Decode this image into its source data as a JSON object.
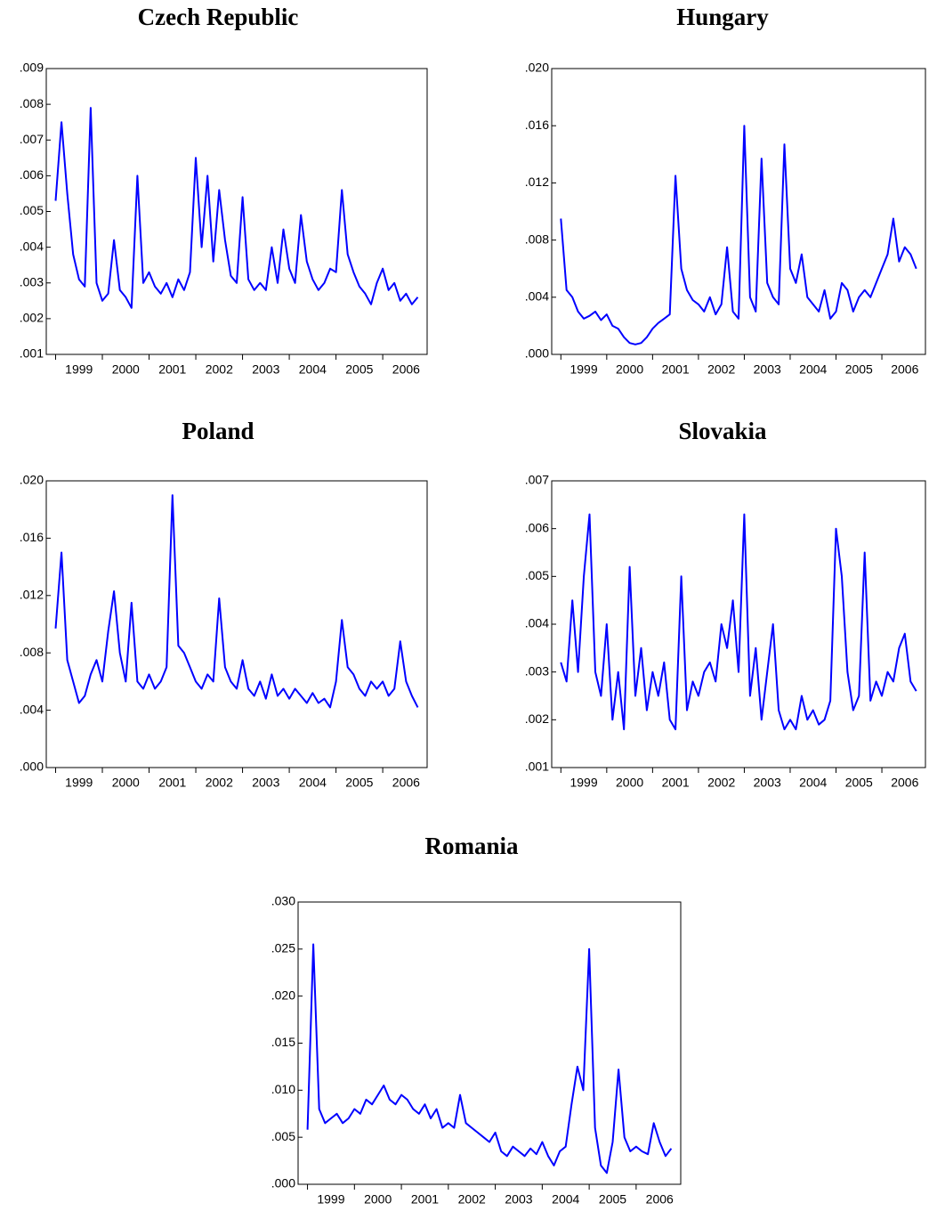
{
  "chart_data": [
    {
      "type": "line",
      "title": "Czech Republic",
      "color": "#0000ff",
      "x": [
        1999,
        1999.125,
        1999.25,
        1999.375,
        1999.5,
        1999.625,
        1999.75,
        1999.875,
        2000,
        2000.125,
        2000.25,
        2000.375,
        2000.5,
        2000.625,
        2000.75,
        2000.875,
        2001,
        2001.125,
        2001.25,
        2001.375,
        2001.5,
        2001.625,
        2001.75,
        2001.875,
        2002,
        2002.125,
        2002.25,
        2002.375,
        2002.5,
        2002.625,
        2002.75,
        2002.875,
        2003,
        2003.125,
        2003.25,
        2003.375,
        2003.5,
        2003.625,
        2003.75,
        2003.875,
        2004,
        2004.125,
        2004.25,
        2004.375,
        2004.5,
        2004.625,
        2004.75,
        2004.875,
        2005,
        2005.125,
        2005.25,
        2005.375,
        2005.5,
        2005.625,
        2005.75,
        2005.875,
        2006,
        2006.125,
        2006.25,
        2006.375,
        2006.5,
        2006.625,
        2006.75
      ],
      "values": [
        0.0053,
        0.0075,
        0.0055,
        0.0038,
        0.0031,
        0.0029,
        0.0079,
        0.003,
        0.0025,
        0.0027,
        0.0042,
        0.0028,
        0.0026,
        0.0023,
        0.006,
        0.003,
        0.0033,
        0.0029,
        0.0027,
        0.003,
        0.0026,
        0.0031,
        0.0028,
        0.0033,
        0.0065,
        0.004,
        0.006,
        0.0036,
        0.0056,
        0.0042,
        0.0032,
        0.003,
        0.0054,
        0.0031,
        0.0028,
        0.003,
        0.0028,
        0.004,
        0.003,
        0.0045,
        0.0034,
        0.003,
        0.0049,
        0.0036,
        0.0031,
        0.0028,
        0.003,
        0.0034,
        0.0033,
        0.0056,
        0.0038,
        0.0033,
        0.0029,
        0.0027,
        0.0024,
        0.003,
        0.0034,
        0.0028,
        0.003,
        0.0025,
        0.0027,
        0.0024,
        0.0026
      ],
      "xlim": [
        1998.8,
        2006.95
      ],
      "xticks": [
        1999,
        2000,
        2001,
        2002,
        2003,
        2004,
        2005,
        2006
      ],
      "ylim": [
        0.001,
        0.009
      ],
      "yticks": [
        {
          "value": 0.001,
          "label": ".001"
        },
        {
          "value": 0.002,
          "label": ".002"
        },
        {
          "value": 0.003,
          "label": ".003"
        },
        {
          "value": 0.004,
          "label": ".004"
        },
        {
          "value": 0.005,
          "label": ".005"
        },
        {
          "value": 0.006,
          "label": ".006"
        },
        {
          "value": 0.007,
          "label": ".007"
        },
        {
          "value": 0.008,
          "label": ".008"
        },
        {
          "value": 0.009,
          "label": ".009"
        }
      ]
    },
    {
      "type": "line",
      "title": "Hungary",
      "color": "#0000ff",
      "x": [
        1999,
        1999.125,
        1999.25,
        1999.375,
        1999.5,
        1999.625,
        1999.75,
        1999.875,
        2000,
        2000.125,
        2000.25,
        2000.375,
        2000.5,
        2000.625,
        2000.75,
        2000.875,
        2001,
        2001.125,
        2001.25,
        2001.375,
        2001.5,
        2001.625,
        2001.75,
        2001.875,
        2002,
        2002.125,
        2002.25,
        2002.375,
        2002.5,
        2002.625,
        2002.75,
        2002.875,
        2003,
        2003.125,
        2003.25,
        2003.375,
        2003.5,
        2003.625,
        2003.75,
        2003.875,
        2004,
        2004.125,
        2004.25,
        2004.375,
        2004.5,
        2004.625,
        2004.75,
        2004.875,
        2005,
        2005.125,
        2005.25,
        2005.375,
        2005.5,
        2005.625,
        2005.75,
        2005.875,
        2006,
        2006.125,
        2006.25,
        2006.375,
        2006.5,
        2006.625,
        2006.75
      ],
      "values": [
        0.0095,
        0.0045,
        0.004,
        0.003,
        0.0025,
        0.0027,
        0.003,
        0.0024,
        0.0028,
        0.002,
        0.0018,
        0.0012,
        0.0008,
        0.0007,
        0.0008,
        0.0012,
        0.0018,
        0.0022,
        0.0025,
        0.0028,
        0.0125,
        0.006,
        0.0045,
        0.0038,
        0.0035,
        0.003,
        0.004,
        0.0028,
        0.0035,
        0.0075,
        0.003,
        0.0025,
        0.016,
        0.004,
        0.003,
        0.0137,
        0.005,
        0.004,
        0.0035,
        0.0147,
        0.006,
        0.005,
        0.007,
        0.004,
        0.0035,
        0.003,
        0.0045,
        0.0025,
        0.003,
        0.005,
        0.0045,
        0.003,
        0.004,
        0.0045,
        0.004,
        0.005,
        0.006,
        0.007,
        0.0095,
        0.0065,
        0.0075,
        0.007,
        0.006
      ],
      "xlim": [
        1998.8,
        2006.95
      ],
      "xticks": [
        1999,
        2000,
        2001,
        2002,
        2003,
        2004,
        2005,
        2006
      ],
      "ylim": [
        0,
        0.02
      ],
      "yticks": [
        {
          "value": 0,
          "label": ".000"
        },
        {
          "value": 0.004,
          "label": ".004"
        },
        {
          "value": 0.008,
          "label": ".008"
        },
        {
          "value": 0.012,
          "label": ".012"
        },
        {
          "value": 0.016,
          "label": ".016"
        },
        {
          "value": 0.02,
          "label": ".020"
        }
      ]
    },
    {
      "type": "line",
      "title": "Poland",
      "color": "#0000ff",
      "x": [
        1999,
        1999.125,
        1999.25,
        1999.375,
        1999.5,
        1999.625,
        1999.75,
        1999.875,
        2000,
        2000.125,
        2000.25,
        2000.375,
        2000.5,
        2000.625,
        2000.75,
        2000.875,
        2001,
        2001.125,
        2001.25,
        2001.375,
        2001.5,
        2001.625,
        2001.75,
        2001.875,
        2002,
        2002.125,
        2002.25,
        2002.375,
        2002.5,
        2002.625,
        2002.75,
        2002.875,
        2003,
        2003.125,
        2003.25,
        2003.375,
        2003.5,
        2003.625,
        2003.75,
        2003.875,
        2004,
        2004.125,
        2004.25,
        2004.375,
        2004.5,
        2004.625,
        2004.75,
        2004.875,
        2005,
        2005.125,
        2005.25,
        2005.375,
        2005.5,
        2005.625,
        2005.75,
        2005.875,
        2006,
        2006.125,
        2006.25,
        2006.375,
        2006.5,
        2006.625,
        2006.75
      ],
      "values": [
        0.0097,
        0.015,
        0.0075,
        0.006,
        0.0045,
        0.005,
        0.0065,
        0.0075,
        0.006,
        0.0095,
        0.0123,
        0.008,
        0.006,
        0.0115,
        0.006,
        0.0055,
        0.0065,
        0.0055,
        0.006,
        0.007,
        0.019,
        0.0085,
        0.008,
        0.007,
        0.006,
        0.0055,
        0.0065,
        0.006,
        0.0118,
        0.007,
        0.006,
        0.0055,
        0.0075,
        0.0055,
        0.005,
        0.006,
        0.0048,
        0.0065,
        0.005,
        0.0055,
        0.0048,
        0.0055,
        0.005,
        0.0045,
        0.0052,
        0.0045,
        0.0048,
        0.0042,
        0.006,
        0.0103,
        0.007,
        0.0065,
        0.0055,
        0.005,
        0.006,
        0.0055,
        0.006,
        0.005,
        0.0055,
        0.0088,
        0.006,
        0.005,
        0.0042
      ],
      "xlim": [
        1998.8,
        2006.95
      ],
      "xticks": [
        1999,
        2000,
        2001,
        2002,
        2003,
        2004,
        2005,
        2006
      ],
      "ylim": [
        0,
        0.02
      ],
      "yticks": [
        {
          "value": 0,
          "label": ".000"
        },
        {
          "value": 0.004,
          "label": ".004"
        },
        {
          "value": 0.008,
          "label": ".008"
        },
        {
          "value": 0.012,
          "label": ".012"
        },
        {
          "value": 0.016,
          "label": ".016"
        },
        {
          "value": 0.02,
          "label": ".020"
        }
      ]
    },
    {
      "type": "line",
      "title": "Slovakia",
      "color": "#0000ff",
      "x": [
        1999,
        1999.125,
        1999.25,
        1999.375,
        1999.5,
        1999.625,
        1999.75,
        1999.875,
        2000,
        2000.125,
        2000.25,
        2000.375,
        2000.5,
        2000.625,
        2000.75,
        2000.875,
        2001,
        2001.125,
        2001.25,
        2001.375,
        2001.5,
        2001.625,
        2001.75,
        2001.875,
        2002,
        2002.125,
        2002.25,
        2002.375,
        2002.5,
        2002.625,
        2002.75,
        2002.875,
        2003,
        2003.125,
        2003.25,
        2003.375,
        2003.5,
        2003.625,
        2003.75,
        2003.875,
        2004,
        2004.125,
        2004.25,
        2004.375,
        2004.5,
        2004.625,
        2004.75,
        2004.875,
        2005,
        2005.125,
        2005.25,
        2005.375,
        2005.5,
        2005.625,
        2005.75,
        2005.875,
        2006,
        2006.125,
        2006.25,
        2006.375,
        2006.5,
        2006.625,
        2006.75
      ],
      "values": [
        0.0032,
        0.0028,
        0.0045,
        0.003,
        0.005,
        0.0063,
        0.003,
        0.0025,
        0.004,
        0.002,
        0.003,
        0.0018,
        0.0052,
        0.0025,
        0.0035,
        0.0022,
        0.003,
        0.0025,
        0.0032,
        0.002,
        0.0018,
        0.005,
        0.0022,
        0.0028,
        0.0025,
        0.003,
        0.0032,
        0.0028,
        0.004,
        0.0035,
        0.0045,
        0.003,
        0.0063,
        0.0025,
        0.0035,
        0.002,
        0.003,
        0.004,
        0.0022,
        0.0018,
        0.002,
        0.0018,
        0.0025,
        0.002,
        0.0022,
        0.0019,
        0.002,
        0.0024,
        0.006,
        0.005,
        0.003,
        0.0022,
        0.0025,
        0.0055,
        0.0024,
        0.0028,
        0.0025,
        0.003,
        0.0028,
        0.0035,
        0.0038,
        0.0028,
        0.0026
      ],
      "xlim": [
        1998.8,
        2006.95
      ],
      "xticks": [
        1999,
        2000,
        2001,
        2002,
        2003,
        2004,
        2005,
        2006
      ],
      "ylim": [
        0.001,
        0.007
      ],
      "yticks": [
        {
          "value": 0.001,
          "label": ".001"
        },
        {
          "value": 0.002,
          "label": ".002"
        },
        {
          "value": 0.003,
          "label": ".003"
        },
        {
          "value": 0.004,
          "label": ".004"
        },
        {
          "value": 0.005,
          "label": ".005"
        },
        {
          "value": 0.006,
          "label": ".006"
        },
        {
          "value": 0.007,
          "label": ".007"
        }
      ]
    },
    {
      "type": "line",
      "title": "Romania",
      "color": "#0000ff",
      "x": [
        1999,
        1999.125,
        1999.25,
        1999.375,
        1999.5,
        1999.625,
        1999.75,
        1999.875,
        2000,
        2000.125,
        2000.25,
        2000.375,
        2000.5,
        2000.625,
        2000.75,
        2000.875,
        2001,
        2001.125,
        2001.25,
        2001.375,
        2001.5,
        2001.625,
        2001.75,
        2001.875,
        2002,
        2002.125,
        2002.25,
        2002.375,
        2002.5,
        2002.625,
        2002.75,
        2002.875,
        2003,
        2003.125,
        2003.25,
        2003.375,
        2003.5,
        2003.625,
        2003.75,
        2003.875,
        2004,
        2004.125,
        2004.25,
        2004.375,
        2004.5,
        2004.625,
        2004.75,
        2004.875,
        2005,
        2005.125,
        2005.25,
        2005.375,
        2005.5,
        2005.625,
        2005.75,
        2005.875,
        2006,
        2006.125,
        2006.25,
        2006.375,
        2006.5,
        2006.625,
        2006.75
      ],
      "values": [
        0.0058,
        0.0255,
        0.008,
        0.0065,
        0.007,
        0.0075,
        0.0065,
        0.007,
        0.008,
        0.0075,
        0.009,
        0.0085,
        0.0095,
        0.0105,
        0.009,
        0.0085,
        0.0095,
        0.009,
        0.008,
        0.0075,
        0.0085,
        0.007,
        0.008,
        0.006,
        0.0065,
        0.006,
        0.0095,
        0.0065,
        0.006,
        0.0055,
        0.005,
        0.0045,
        0.0055,
        0.0035,
        0.003,
        0.004,
        0.0035,
        0.003,
        0.0038,
        0.0032,
        0.0045,
        0.003,
        0.002,
        0.0035,
        0.004,
        0.0085,
        0.0125,
        0.01,
        0.025,
        0.006,
        0.002,
        0.0012,
        0.0045,
        0.0122,
        0.005,
        0.0035,
        0.004,
        0.0035,
        0.0032,
        0.0065,
        0.0045,
        0.003,
        0.0038
      ],
      "xlim": [
        1998.8,
        2006.95
      ],
      "xticks": [
        1999,
        2000,
        2001,
        2002,
        2003,
        2004,
        2005,
        2006
      ],
      "ylim": [
        0,
        0.03
      ],
      "yticks": [
        {
          "value": 0,
          "label": ".000"
        },
        {
          "value": 0.005,
          "label": ".005"
        },
        {
          "value": 0.01,
          "label": ".010"
        },
        {
          "value": 0.015,
          "label": ".015"
        },
        {
          "value": 0.02,
          "label": ".020"
        },
        {
          "value": 0.025,
          "label": ".025"
        },
        {
          "value": 0.03,
          "label": ".030"
        }
      ]
    }
  ]
}
